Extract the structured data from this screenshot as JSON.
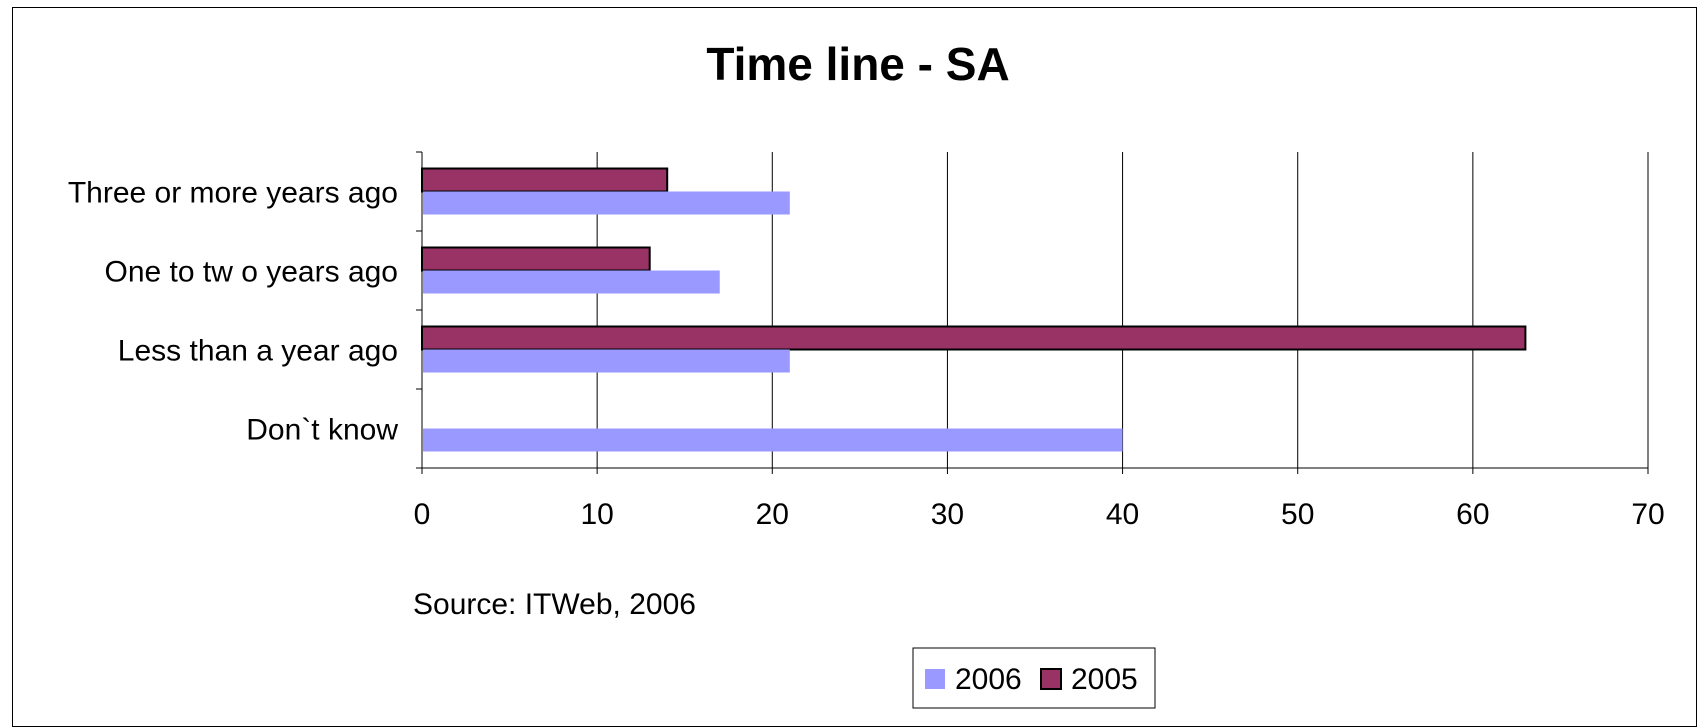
{
  "chart_data": {
    "type": "bar",
    "orientation": "horizontal",
    "title": "Time line - SA",
    "categories": [
      "Three or more years ago",
      "One to tw o years ago",
      "Less than a year ago",
      "Don`t know"
    ],
    "series": [
      {
        "name": "2005",
        "values": [
          14,
          13,
          63,
          null
        ],
        "color": "#993366"
      },
      {
        "name": "2006",
        "values": [
          21,
          17,
          21,
          40
        ],
        "color": "#9999ff"
      }
    ],
    "xlim": [
      0,
      70
    ],
    "x_ticks": [
      "0",
      "10",
      "20",
      "30",
      "40",
      "50",
      "60",
      "70"
    ],
    "grid": "vertical",
    "legend": "bottom-center",
    "legend_order": [
      "2006",
      "2005"
    ]
  },
  "source": "Source: ITWeb, 2006"
}
